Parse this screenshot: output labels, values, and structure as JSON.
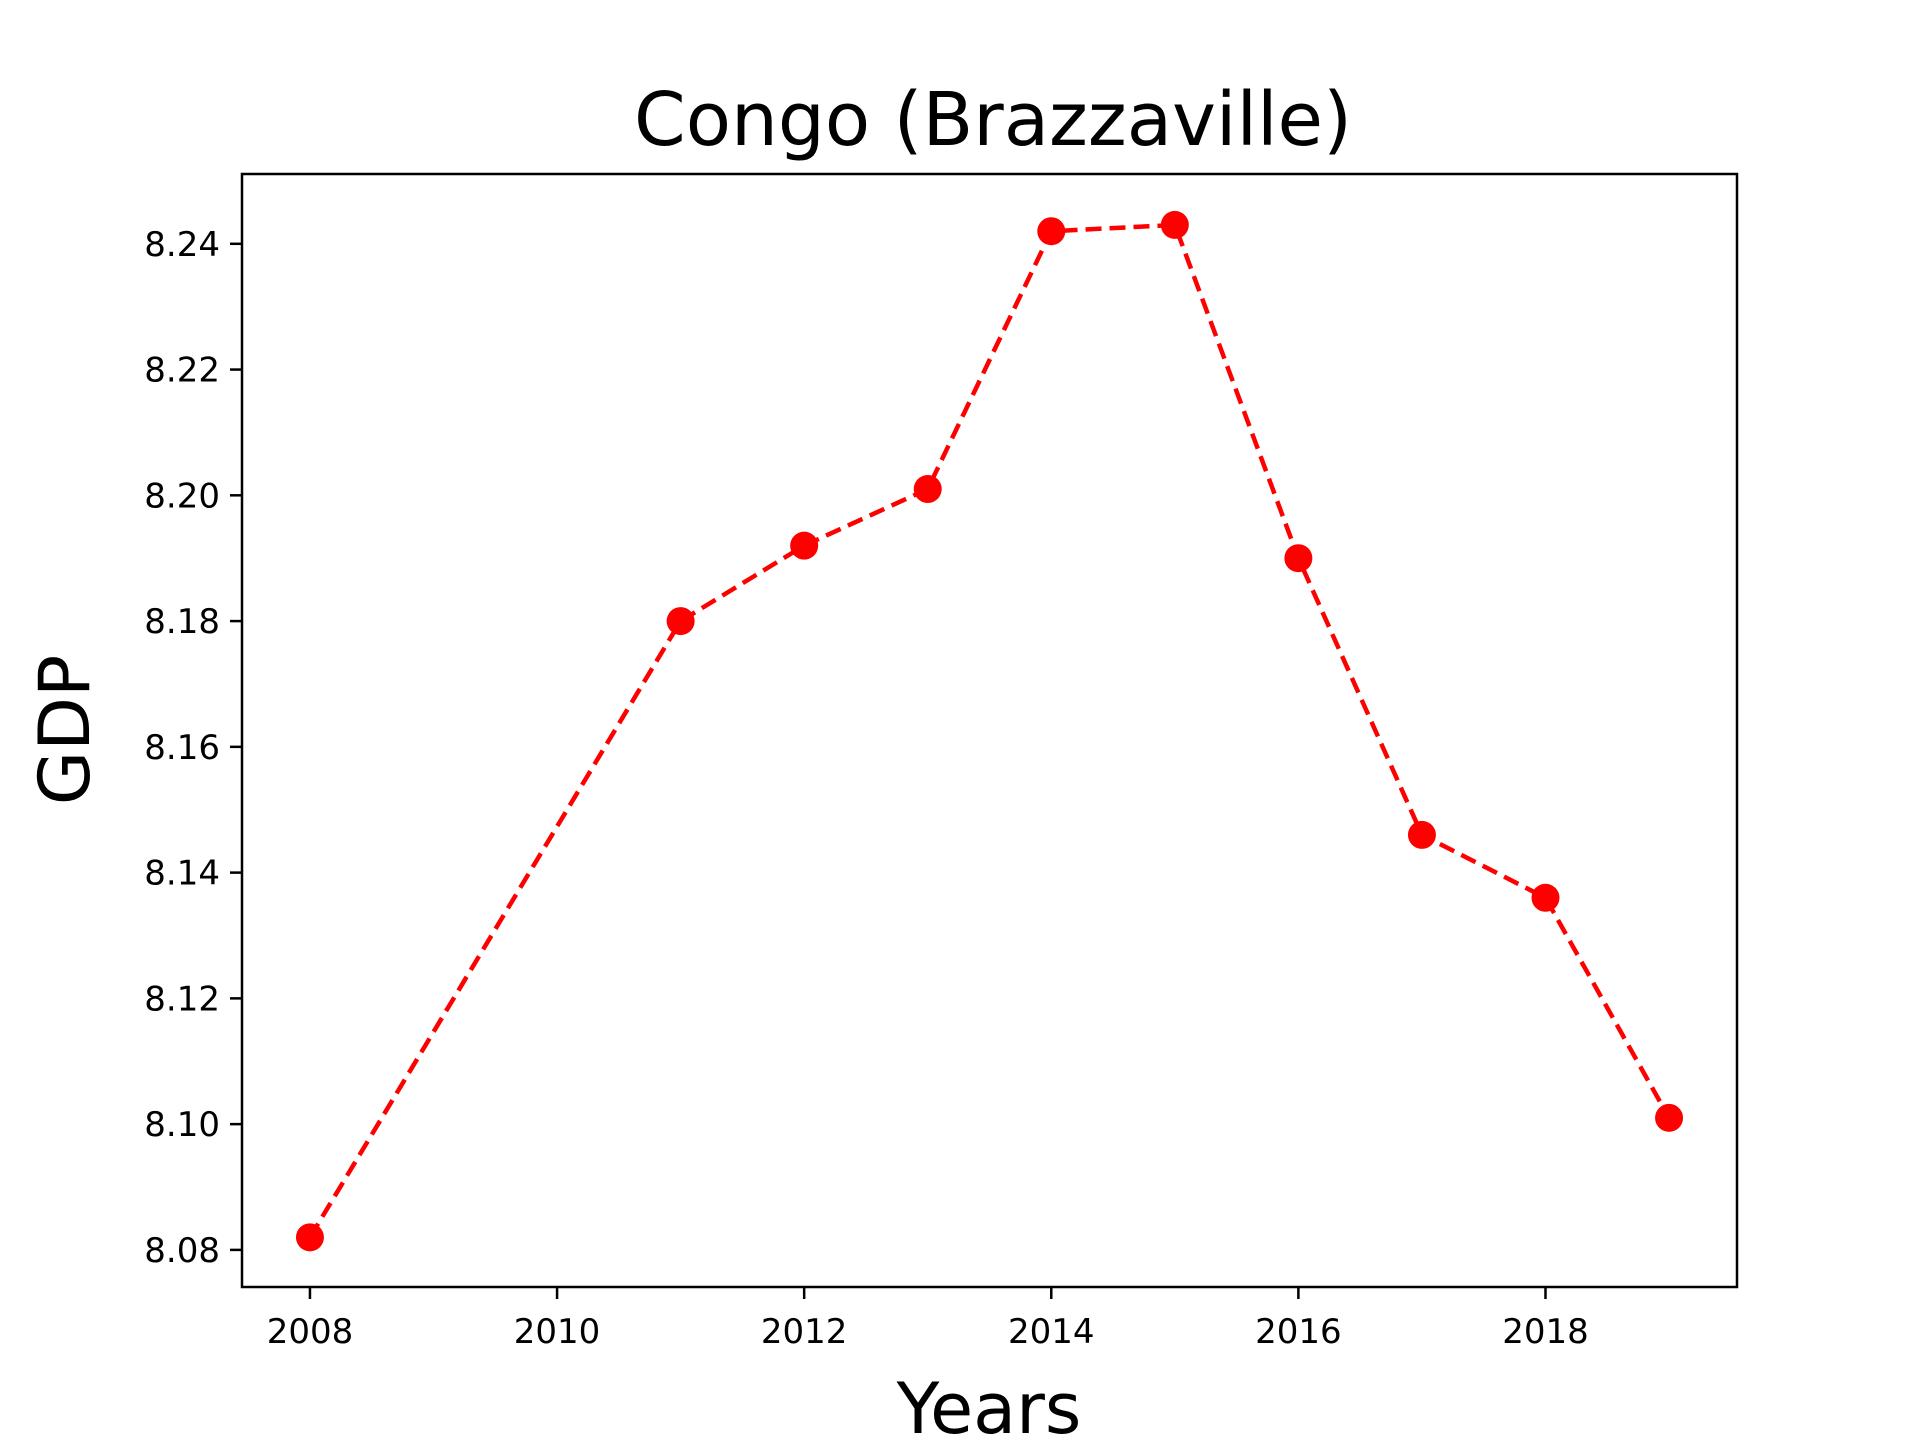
{
  "chart_data": {
    "type": "line",
    "title": "Congo (Brazzaville)",
    "xlabel": "Years",
    "ylabel": "GDP",
    "x": [
      2008,
      2011,
      2012,
      2013,
      2014,
      2015,
      2016,
      2017,
      2018,
      2019
    ],
    "series": [
      {
        "values": [
          8.082,
          8.18,
          8.192,
          8.201,
          8.242,
          8.243,
          8.19,
          8.146,
          8.136,
          8.101
        ],
        "color": "#ff0000",
        "line_style": "dashed",
        "marker": "circle"
      }
    ],
    "xlim": [
      2007.45,
      2019.55
    ],
    "ylim": [
      8.0741,
      8.2511
    ],
    "xticks": [
      2008,
      2010,
      2012,
      2014,
      2016,
      2018
    ],
    "yticks": [
      8.08,
      8.1,
      8.12,
      8.14,
      8.16,
      8.18,
      8.2,
      8.22,
      8.24
    ],
    "ytick_labels": [
      "8.08",
      "8.10",
      "8.12",
      "8.14",
      "8.16",
      "8.18",
      "8.20",
      "8.22",
      "8.24"
    ],
    "grid": false,
    "legend": false
  }
}
